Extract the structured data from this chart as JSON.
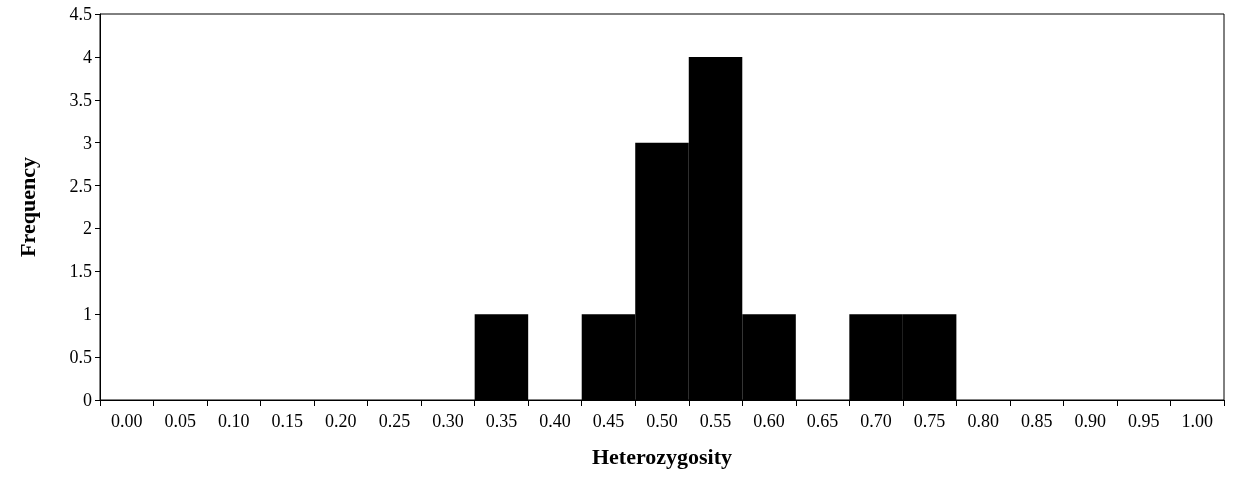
{
  "chart_data": {
    "type": "bar",
    "xlabel": "Heterozygosity",
    "ylabel": "Frequency",
    "categories": [
      "0.00",
      "0.05",
      "0.10",
      "0.15",
      "0.20",
      "0.25",
      "0.30",
      "0.35",
      "0.40",
      "0.45",
      "0.50",
      "0.55",
      "0.60",
      "0.65",
      "0.70",
      "0.75",
      "0.80",
      "0.85",
      "0.90",
      "0.95",
      "1.00"
    ],
    "values": [
      0,
      0,
      0,
      0,
      0,
      0,
      0,
      1,
      0,
      1,
      3,
      4,
      1,
      0,
      1,
      1,
      0,
      0,
      0,
      0,
      0
    ],
    "color": "#000000",
    "ylim": [
      0,
      4.5
    ],
    "yticks": [
      0,
      0.5,
      1,
      1.5,
      2,
      2.5,
      3,
      3.5,
      4,
      4.5
    ],
    "grid": false
  }
}
